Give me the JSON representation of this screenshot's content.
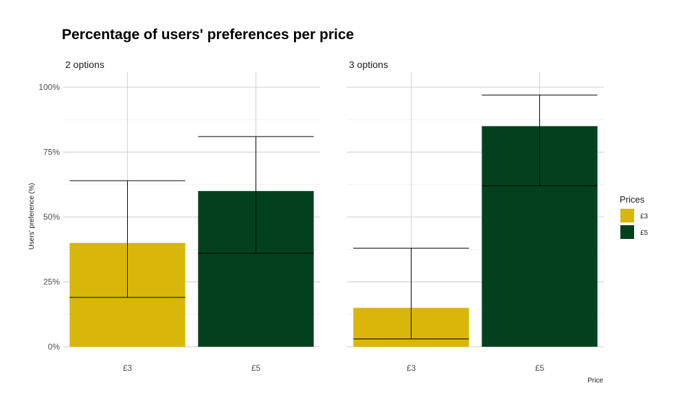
{
  "chart_data": {
    "type": "bar",
    "title": "Percentage of users' preferences per price",
    "ylabel": "Users' preference (%)",
    "xlabel": "Price",
    "ylim": [
      0,
      100
    ],
    "yticks": [
      0,
      25,
      50,
      75,
      100
    ],
    "ytick_labels": [
      "0%",
      "25%",
      "50%",
      "75%",
      "100%"
    ],
    "categories": [
      "£3",
      "£5"
    ],
    "grid": true,
    "legend": {
      "title": "Prices",
      "placement": "right",
      "items": [
        {
          "label": "£3",
          "color": "#D9B60A"
        },
        {
          "label": "£5",
          "color": "#03411E"
        }
      ]
    },
    "facets": [
      {
        "label": "2 options",
        "bars": [
          {
            "category": "£3",
            "value": 40,
            "ci_low": 19,
            "ci_high": 64,
            "color": "#D9B60A"
          },
          {
            "category": "£5",
            "value": 60,
            "ci_low": 36,
            "ci_high": 81,
            "color": "#03411E"
          }
        ]
      },
      {
        "label": "3 options",
        "bars": [
          {
            "category": "£3",
            "value": 15,
            "ci_low": 3,
            "ci_high": 38,
            "color": "#D9B60A"
          },
          {
            "category": "£5",
            "value": 85,
            "ci_low": 62,
            "ci_high": 97,
            "color": "#03411E"
          }
        ]
      }
    ]
  }
}
